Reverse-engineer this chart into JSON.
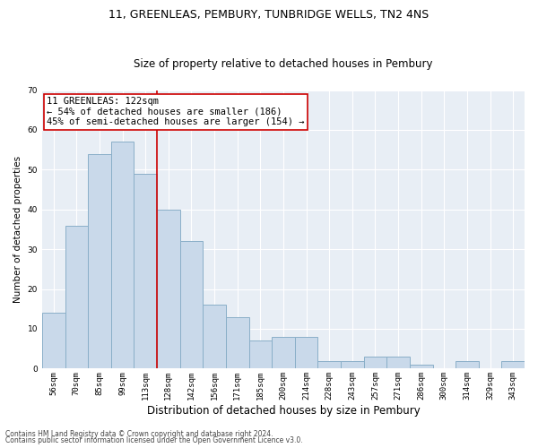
{
  "title": "11, GREENLEAS, PEMBURY, TUNBRIDGE WELLS, TN2 4NS",
  "subtitle": "Size of property relative to detached houses in Pembury",
  "xlabel": "Distribution of detached houses by size in Pembury",
  "ylabel": "Number of detached properties",
  "bar_color": "#c9d9ea",
  "bar_edge_color": "#8aafc8",
  "bg_color": "#e8eef5",
  "grid_color": "#ffffff",
  "fig_color": "#ffffff",
  "categories": [
    "56sqm",
    "70sqm",
    "85sqm",
    "99sqm",
    "113sqm",
    "128sqm",
    "142sqm",
    "156sqm",
    "171sqm",
    "185sqm",
    "200sqm",
    "214sqm",
    "228sqm",
    "243sqm",
    "257sqm",
    "271sqm",
    "286sqm",
    "300sqm",
    "314sqm",
    "329sqm",
    "343sqm"
  ],
  "values": [
    14,
    36,
    54,
    57,
    49,
    40,
    32,
    16,
    13,
    7,
    8,
    8,
    2,
    2,
    3,
    3,
    1,
    0,
    2,
    0,
    2
  ],
  "ylim": [
    0,
    70
  ],
  "yticks": [
    0,
    10,
    20,
    30,
    40,
    50,
    60,
    70
  ],
  "vline_x": 4.5,
  "vline_color": "#cc0000",
  "annotation_text": "11 GREENLEAS: 122sqm\n← 54% of detached houses are smaller (186)\n45% of semi-detached houses are larger (154) →",
  "annotation_box_color": "#ffffff",
  "annotation_box_edge": "#cc0000",
  "footer1": "Contains HM Land Registry data © Crown copyright and database right 2024.",
  "footer2": "Contains public sector information licensed under the Open Government Licence v3.0.",
  "title_fontsize": 9,
  "subtitle_fontsize": 8.5,
  "ylabel_fontsize": 7.5,
  "xlabel_fontsize": 8.5,
  "tick_fontsize": 6.5,
  "annot_fontsize": 7.5,
  "footer_fontsize": 5.5
}
